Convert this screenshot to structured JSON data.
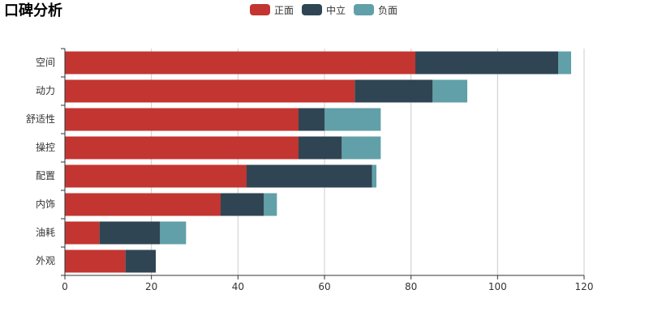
{
  "chart_data": {
    "type": "bar",
    "orientation": "horizontal",
    "stacked": true,
    "title": "口碑分析",
    "categories": [
      "空间",
      "动力",
      "舒适性",
      "操控",
      "配置",
      "内饰",
      "油耗",
      "外观"
    ],
    "series": [
      {
        "name": "正面",
        "color": "#c23531",
        "values": [
          81,
          67,
          54,
          54,
          42,
          36,
          8,
          14
        ]
      },
      {
        "name": "中立",
        "color": "#2f4554",
        "values": [
          33,
          18,
          6,
          10,
          29,
          10,
          14,
          7
        ]
      },
      {
        "name": "负面",
        "color": "#61a0a8",
        "values": [
          3,
          8,
          13,
          9,
          1,
          3,
          6,
          0
        ]
      }
    ],
    "xlim": [
      0,
      120
    ],
    "x_ticks": [
      0,
      20,
      40,
      60,
      80,
      100,
      120
    ],
    "grid": true,
    "legend_position": "top-center"
  }
}
